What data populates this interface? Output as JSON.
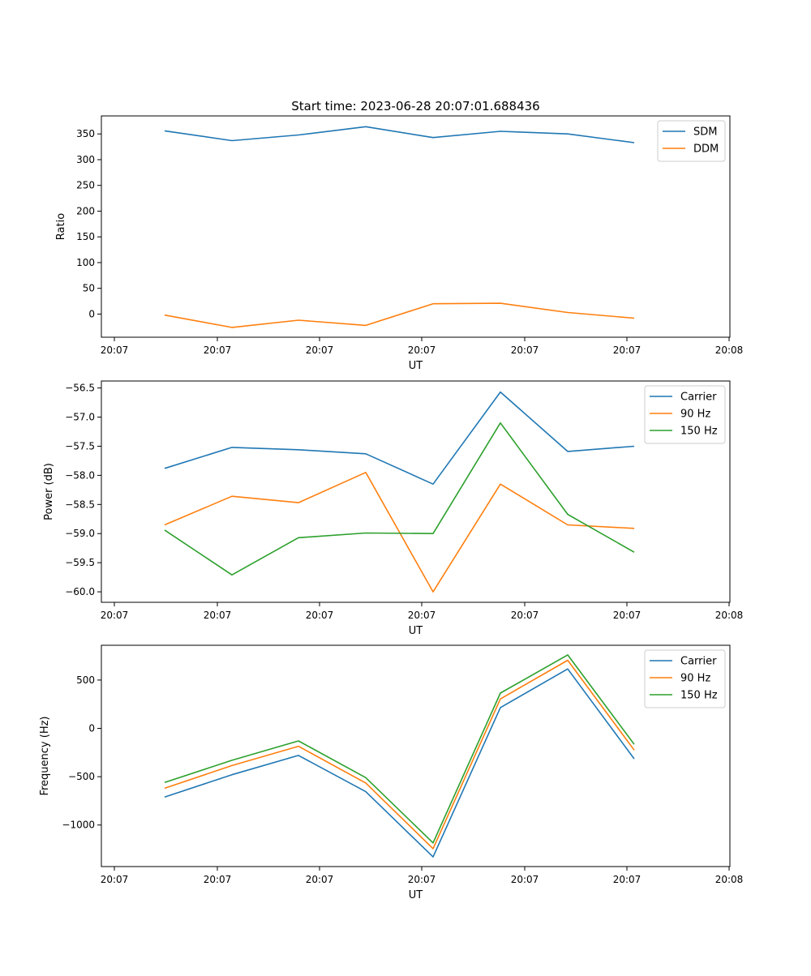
{
  "title": "Start time: 2023-06-28 20:07:01.688436",
  "colors": {
    "c0": "#1f77b4",
    "c1": "#ff7f0e",
    "c2": "#2ca02c"
  },
  "chart_data": [
    {
      "type": "line",
      "xlabel": "UT",
      "ylabel": "Ratio",
      "x_tick_labels": [
        "20:07",
        "20:07",
        "20:07",
        "20:07",
        "20:07",
        "20:07",
        "20:08"
      ],
      "y_ticks": [
        0,
        50,
        100,
        150,
        200,
        250,
        300,
        350
      ],
      "y_tick_labels": [
        "0",
        "50",
        "100",
        "150",
        "200",
        "250",
        "300",
        "350"
      ],
      "ylim": [
        -45,
        385
      ],
      "legend_position": "upper-right",
      "series": [
        {
          "name": "SDM",
          "color": "#1f77b4",
          "values": [
            356,
            337,
            348,
            364,
            343,
            355,
            350,
            333
          ]
        },
        {
          "name": "DDM",
          "color": "#ff7f0e",
          "values": [
            -2,
            -26,
            -12,
            -22,
            20,
            21,
            3,
            -8
          ]
        }
      ]
    },
    {
      "type": "line",
      "xlabel": "UT",
      "ylabel": "Power (dB)",
      "x_tick_labels": [
        "20:07",
        "20:07",
        "20:07",
        "20:07",
        "20:07",
        "20:07",
        "20:08"
      ],
      "y_ticks": [
        -60.0,
        -59.5,
        -59.0,
        -58.5,
        -58.0,
        -57.5,
        -57.0,
        -56.5
      ],
      "y_tick_labels": [
        "−60.0",
        "−59.5",
        "−59.0",
        "−58.5",
        "−58.0",
        "−57.5",
        "−57.0",
        "−56.5"
      ],
      "ylim": [
        -60.18,
        -56.38
      ],
      "legend_position": "upper-right",
      "series": [
        {
          "name": "Carrier",
          "color": "#1f77b4",
          "values": [
            -57.88,
            -57.52,
            -57.56,
            -57.63,
            -58.15,
            -56.57,
            -57.59,
            -57.5
          ]
        },
        {
          "name": "90 Hz",
          "color": "#ff7f0e",
          "values": [
            -58.85,
            -58.36,
            -58.47,
            -57.95,
            -60.0,
            -58.15,
            -58.85,
            -58.91
          ]
        },
        {
          "name": "150 Hz",
          "color": "#2ca02c",
          "values": [
            -58.94,
            -59.71,
            -59.07,
            -58.99,
            -59.0,
            -57.1,
            -58.67,
            -59.32
          ]
        }
      ]
    },
    {
      "type": "line",
      "xlabel": "UT",
      "ylabel": "Frequency (Hz)",
      "x_tick_labels": [
        "20:07",
        "20:07",
        "20:07",
        "20:07",
        "20:07",
        "20:07",
        "20:08"
      ],
      "y_ticks": [
        -1000,
        -500,
        0,
        500
      ],
      "y_tick_labels": [
        "−1000",
        "−500",
        "0",
        "500"
      ],
      "ylim": [
        -1430,
        860
      ],
      "legend_position": "upper-right",
      "series": [
        {
          "name": "Carrier",
          "color": "#1f77b4",
          "values": [
            -710,
            -480,
            -280,
            -655,
            -1330,
            215,
            615,
            -315
          ]
        },
        {
          "name": "90 Hz",
          "color": "#ff7f0e",
          "values": [
            -620,
            -385,
            -185,
            -565,
            -1245,
            305,
            705,
            -225
          ]
        },
        {
          "name": "150 Hz",
          "color": "#2ca02c",
          "values": [
            -560,
            -330,
            -130,
            -510,
            -1185,
            365,
            760,
            -165
          ]
        }
      ]
    }
  ]
}
